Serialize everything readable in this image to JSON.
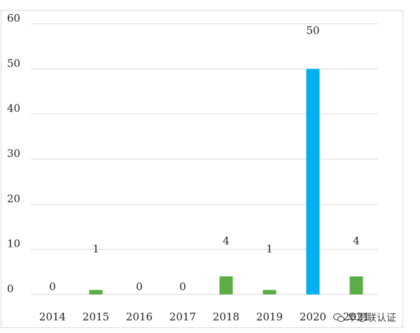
{
  "chart_data": {
    "type": "bar",
    "categories": [
      "2014",
      "2015",
      "2016",
      "2017",
      "2018",
      "2019",
      "2020",
      "2021"
    ],
    "values": [
      0,
      1,
      0,
      0,
      4,
      1,
      50,
      4
    ],
    "data_labels": [
      "0",
      "1",
      "0",
      "0",
      "4",
      "1",
      "50",
      "4"
    ],
    "highlight_category": "2020",
    "ylim": [
      0,
      60
    ],
    "yticks": [
      0,
      10,
      20,
      30,
      40,
      50,
      60
    ],
    "grid": true,
    "legend": "none",
    "colors": {
      "default": "#5aae45",
      "highlight": "#00b0f0",
      "grid": "#d9d9d9"
    }
  },
  "watermark": {
    "icon": "wechat-icon",
    "text": "华思联认证"
  }
}
